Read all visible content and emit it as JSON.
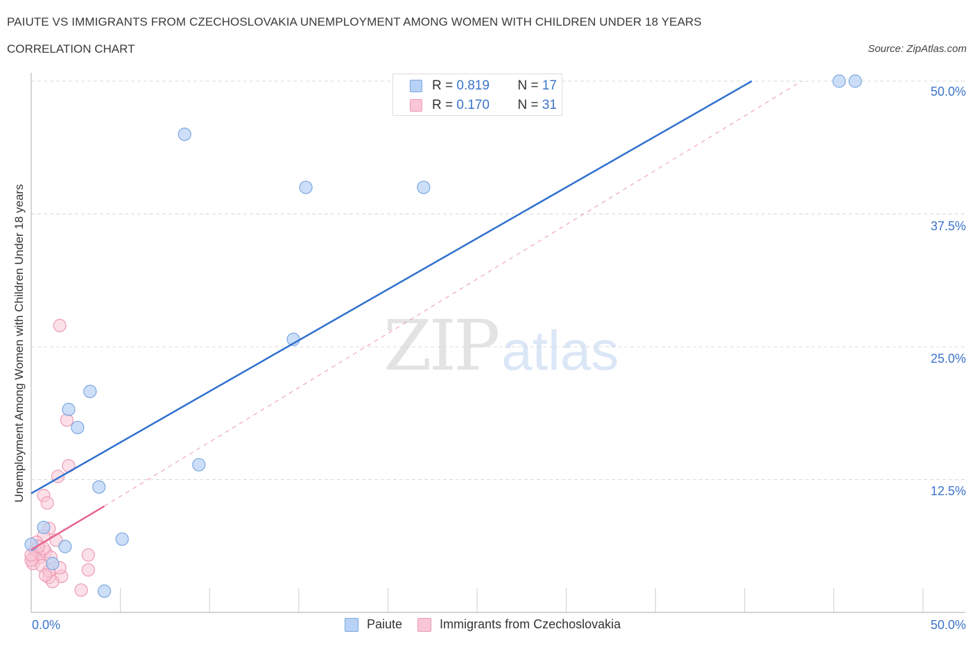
{
  "header": {
    "title": "PAIUTE VS IMMIGRANTS FROM CZECHOSLOVAKIA UNEMPLOYMENT AMONG WOMEN WITH CHILDREN UNDER 18 YEARS",
    "subtitle": "CORRELATION CHART",
    "source": "Source: ZipAtlas.com"
  },
  "watermark": {
    "zip": "ZIP",
    "atlas": "atlas"
  },
  "legend_top": {
    "rows": [
      {
        "r_label": "R =",
        "r_value": "0.819",
        "n_label": "N =",
        "n_value": "17",
        "color": "#b8d2f5",
        "border": "#7aa6e0"
      },
      {
        "r_label": "R =",
        "r_value": "0.170",
        "n_label": "N =",
        "n_value": "31",
        "color": "#f9c6d6",
        "border": "#ec9ab4"
      }
    ]
  },
  "legend_bottom": {
    "items": [
      {
        "label": "Paiute",
        "color": "#b8d2f5",
        "border": "#7aa6e0"
      },
      {
        "label": "Immigrants from Czechoslovakia",
        "color": "#f9c6d6",
        "border": "#ec9ab4"
      }
    ]
  },
  "axes": {
    "ylabel": "Unemployment Among Women with Children Under 18 years",
    "y_ticks": [
      "50.0%",
      "37.5%",
      "25.0%",
      "12.5%"
    ],
    "x_ticks": [
      "0.0%",
      "50.0%"
    ]
  },
  "chart_data": {
    "type": "scatter",
    "title": "PAIUTE VS IMMIGRANTS FROM CZECHOSLOVAKIA UNEMPLOYMENT AMONG WOMEN WITH CHILDREN UNDER 18 YEARS",
    "subtitle": "CORRELATION CHART",
    "xlabel": "",
    "ylabel": "Unemployment Among Women with Children Under 18 years",
    "xlim": [
      0,
      50
    ],
    "ylim": [
      0,
      50
    ],
    "x_tick_labels": [
      "0.0%",
      "50.0%"
    ],
    "y_tick_labels": [
      "12.5%",
      "25.0%",
      "37.5%",
      "50.0%"
    ],
    "grid": "horizontal dashed at 12.5, 25.0, 37.5, 50.0",
    "legend_position": "bottom center; stats box top center",
    "series": [
      {
        "name": "Paiute",
        "color": "#7aa6e0",
        "fill": "#b8d2f5",
        "R": 0.819,
        "N": 17,
        "trendline": {
          "x": [
            0,
            40.4
          ],
          "y": [
            11.2,
            50.0
          ],
          "style": "solid",
          "color": "#2f6fd0"
        },
        "points": [
          [
            45.3,
            50.0
          ],
          [
            46.2,
            50.0
          ],
          [
            8.6,
            45.0
          ],
          [
            15.4,
            40.0
          ],
          [
            22.0,
            40.0
          ],
          [
            14.7,
            25.7
          ],
          [
            3.3,
            20.8
          ],
          [
            2.1,
            19.1
          ],
          [
            2.6,
            17.4
          ],
          [
            9.4,
            13.9
          ],
          [
            3.8,
            11.8
          ],
          [
            0.7,
            8.0
          ],
          [
            5.1,
            6.9
          ],
          [
            1.9,
            6.2
          ],
          [
            0.0,
            6.4
          ],
          [
            1.2,
            4.6
          ],
          [
            4.1,
            2.0
          ]
        ]
      },
      {
        "name": "Immigrants from Czechoslovakia",
        "color": "#ec9ab4",
        "fill": "#f9c6d6",
        "R": 0.17,
        "N": 31,
        "trendline": {
          "x": [
            0,
            4.1
          ],
          "y": [
            5.9,
            10.0
          ],
          "style": "solid",
          "color": "#e8628e",
          "extension": {
            "x": [
              4.1,
              43.2
            ],
            "y": [
              10.0,
              50.0
            ],
            "style": "dashed"
          }
        },
        "points": [
          [
            1.6,
            27.0
          ],
          [
            2.0,
            18.1
          ],
          [
            2.1,
            13.8
          ],
          [
            1.5,
            12.8
          ],
          [
            0.7,
            11.0
          ],
          [
            0.9,
            10.3
          ],
          [
            1.0,
            7.9
          ],
          [
            0.7,
            7.2
          ],
          [
            1.4,
            6.8
          ],
          [
            0.2,
            5.9
          ],
          [
            0.4,
            5.5
          ],
          [
            0.1,
            5.1
          ],
          [
            0.5,
            5.2
          ],
          [
            0.8,
            5.7
          ],
          [
            0.1,
            4.6
          ],
          [
            0.6,
            4.4
          ],
          [
            1.1,
            5.2
          ],
          [
            3.2,
            5.4
          ],
          [
            3.2,
            4.0
          ],
          [
            1.0,
            3.3
          ],
          [
            1.7,
            3.4
          ],
          [
            1.2,
            2.9
          ],
          [
            2.8,
            2.1
          ],
          [
            0.3,
            6.6
          ],
          [
            0.0,
            4.9
          ],
          [
            0.7,
            6.0
          ],
          [
            1.0,
            3.9
          ],
          [
            0.4,
            6.2
          ],
          [
            1.6,
            4.2
          ],
          [
            0.0,
            5.4
          ],
          [
            0.8,
            3.5
          ]
        ]
      }
    ]
  }
}
